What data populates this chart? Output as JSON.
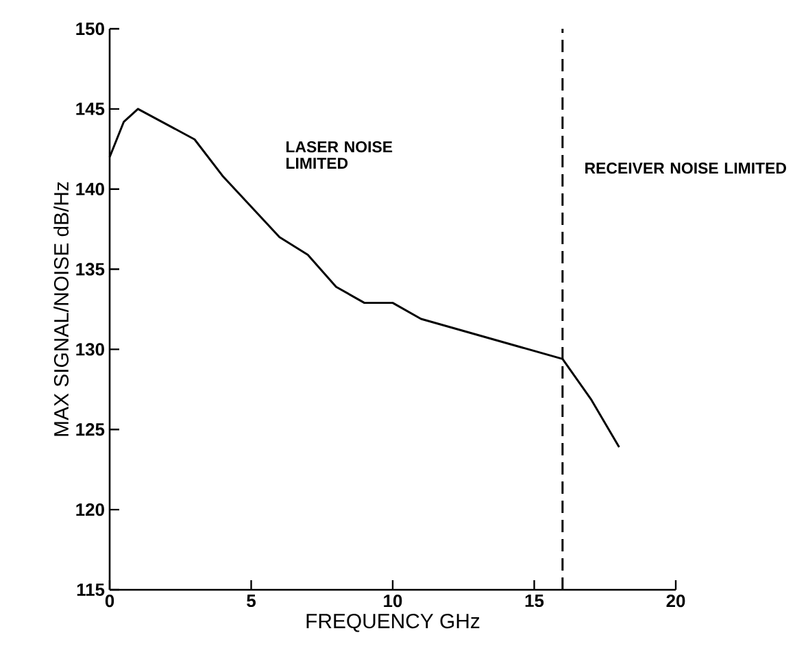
{
  "chart_data": {
    "type": "line",
    "xlabel": "FREQUENCY GHz",
    "ylabel": "MAX SIGNAL/NOISE dB/Hz",
    "x": [
      0,
      0.5,
      1,
      3,
      4,
      6,
      7,
      8,
      9,
      10,
      11,
      16,
      17,
      18
    ],
    "values": [
      142,
      144.2,
      145,
      143.1,
      140.8,
      137,
      135.9,
      133.9,
      132.9,
      132.9,
      131.9,
      129.4,
      126.9,
      123.9
    ],
    "color": "#000000",
    "line_style": "solid",
    "marker": "none",
    "grid": false,
    "xlim": [
      0,
      20
    ],
    "ylim": [
      115,
      150
    ],
    "xticks": [
      0,
      5,
      10,
      15,
      20
    ],
    "yticks": [
      115,
      120,
      125,
      130,
      135,
      140,
      145,
      150
    ],
    "ref_lines": [
      {
        "axis": "x",
        "value": 16,
        "line_style": "dashed",
        "color": "#000000"
      }
    ],
    "annotations": [
      "LASER NOISE LIMITED",
      "RECEIVER NOISE LIMITED"
    ]
  }
}
